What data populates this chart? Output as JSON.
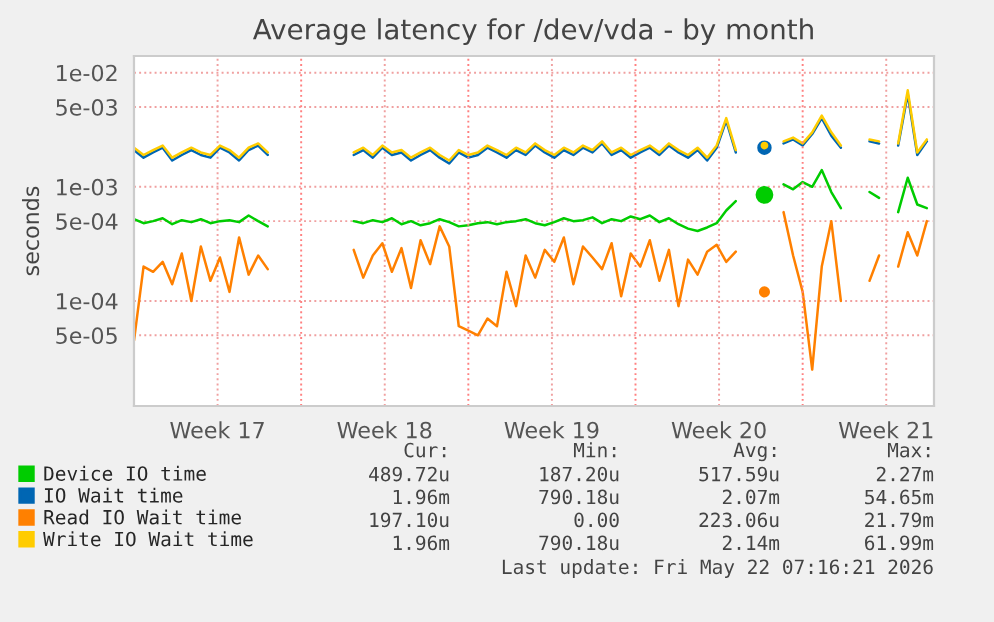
{
  "chart_data": {
    "type": "line",
    "title": "Average latency for /dev/vda - by month",
    "ylabel": "seconds",
    "x": [
      "2026-04-20T00:00",
      "2026-04-20T09:36",
      "2026-04-20T19:12",
      "2026-04-21T04:48",
      "2026-04-21T14:24",
      "2026-04-22T00:00",
      "2026-04-22T09:36",
      "2026-04-22T19:12",
      "2026-04-23T04:48",
      "2026-04-23T14:24",
      "2026-04-24T00:00",
      "2026-04-24T09:36",
      "2026-04-24T19:12",
      "2026-04-25T04:48",
      "2026-04-25T14:24",
      "2026-04-26T00:00",
      "2026-04-26T09:36",
      "2026-04-26T19:12",
      "2026-04-27T04:48",
      "2026-04-27T14:24",
      "2026-04-28T00:00",
      "2026-04-28T09:36",
      "2026-04-28T19:12",
      "2026-04-29T04:48",
      "2026-04-29T14:24",
      "2026-04-30T00:00",
      "2026-04-30T09:36",
      "2026-04-30T19:12",
      "2026-05-01T04:48",
      "2026-05-01T14:24",
      "2026-05-02T00:00",
      "2026-05-02T09:36",
      "2026-05-02T19:12",
      "2026-05-03T04:48",
      "2026-05-03T14:24",
      "2026-05-04T00:00",
      "2026-05-04T09:36",
      "2026-05-04T19:12",
      "2026-05-05T04:48",
      "2026-05-05T14:24",
      "2026-05-06T00:00",
      "2026-05-06T09:36",
      "2026-05-06T19:12",
      "2026-05-07T04:48",
      "2026-05-07T14:24",
      "2026-05-08T00:00",
      "2026-05-08T09:36",
      "2026-05-08T19:12",
      "2026-05-09T04:48",
      "2026-05-09T14:24",
      "2026-05-10T00:00",
      "2026-05-10T09:36",
      "2026-05-10T19:12",
      "2026-05-11T04:48",
      "2026-05-11T14:24",
      "2026-05-12T00:00",
      "2026-05-12T09:36",
      "2026-05-12T19:12",
      "2026-05-13T04:48",
      "2026-05-13T14:24",
      "2026-05-14T00:00",
      "2026-05-14T09:36",
      "2026-05-14T19:12",
      "2026-05-15T04:48",
      "2026-05-15T14:24",
      "2026-05-16T00:00",
      "2026-05-16T09:36",
      "2026-05-16T19:12",
      "2026-05-17T04:48",
      "2026-05-17T14:24",
      "2026-05-18T00:00",
      "2026-05-18T09:36",
      "2026-05-18T19:12",
      "2026-05-19T04:48",
      "2026-05-19T14:24",
      "2026-05-20T00:00",
      "2026-05-20T09:36",
      "2026-05-20T19:12",
      "2026-05-21T04:48",
      "2026-05-21T14:24",
      "2026-05-22T00:00",
      "2026-05-22T09:36",
      "2026-05-22T19:12",
      "2026-05-23T04:48"
    ],
    "series": [
      {
        "name": "Device IO time",
        "color": "#00cc00",
        "values": [
          0.00052,
          0.00048,
          0.0005,
          0.00053,
          0.00047,
          0.00051,
          0.00049,
          0.00052,
          0.00048,
          0.0005,
          0.00051,
          0.00049,
          0.00056,
          0.0005,
          0.00045,
          null,
          null,
          null,
          null,
          null,
          null,
          null,
          null,
          0.0005,
          0.00048,
          0.00051,
          0.00049,
          0.00053,
          0.00047,
          0.0005,
          0.00046,
          0.00048,
          0.00052,
          0.00049,
          0.00045,
          0.00046,
          0.00048,
          0.00049,
          0.00047,
          0.00049,
          0.0005,
          0.00052,
          0.00048,
          0.00046,
          0.00049,
          0.00053,
          0.0005,
          0.00051,
          0.00054,
          0.00048,
          0.00052,
          0.0005,
          0.00055,
          0.00052,
          0.00056,
          0.00049,
          0.00053,
          0.00047,
          0.00043,
          0.00041,
          0.00044,
          0.00048,
          0.00062,
          0.00075,
          null,
          null,
          0.00085,
          null,
          0.00105,
          0.00095,
          0.0011,
          0.001,
          0.0014,
          0.0009,
          0.00065,
          null,
          null,
          0.0009,
          0.0008,
          null,
          0.0006,
          0.0012,
          0.0007,
          0.00065
        ]
      },
      {
        "name": "IO Wait time",
        "color": "#0066b3",
        "values": [
          0.0021,
          0.0018,
          0.002,
          0.0022,
          0.0017,
          0.0019,
          0.0021,
          0.0019,
          0.0018,
          0.0022,
          0.002,
          0.0017,
          0.0021,
          0.0023,
          0.0019,
          null,
          null,
          null,
          null,
          null,
          null,
          null,
          null,
          0.0019,
          0.0021,
          0.0018,
          0.0022,
          0.0019,
          0.002,
          0.0017,
          0.0019,
          0.0021,
          0.0018,
          0.0016,
          0.002,
          0.0018,
          0.0019,
          0.0022,
          0.002,
          0.0018,
          0.0021,
          0.0019,
          0.0023,
          0.002,
          0.0018,
          0.0021,
          0.0019,
          0.0022,
          0.002,
          0.0024,
          0.0019,
          0.0021,
          0.0018,
          0.002,
          0.0022,
          0.0019,
          0.0023,
          0.002,
          0.0018,
          0.0021,
          0.0017,
          0.0022,
          0.0038,
          0.002,
          null,
          null,
          0.0022,
          null,
          0.0024,
          0.0026,
          0.0023,
          0.0029,
          0.004,
          0.0028,
          0.0022,
          null,
          null,
          0.0025,
          0.0024,
          null,
          0.0023,
          0.0065,
          0.0019,
          0.0025
        ]
      },
      {
        "name": "Read IO Wait time",
        "color": "#ff8000",
        "values": [
          4.5e-05,
          0.0002,
          0.00018,
          0.00022,
          0.00014,
          0.00026,
          0.0001,
          0.0003,
          0.00015,
          0.00024,
          0.00012,
          0.00036,
          0.00017,
          0.00025,
          0.00019,
          null,
          null,
          null,
          null,
          null,
          null,
          null,
          null,
          0.00028,
          0.00016,
          0.00025,
          0.00032,
          0.00018,
          0.00029,
          0.00013,
          0.00034,
          0.00021,
          0.00045,
          0.0003,
          6e-05,
          5.5e-05,
          5e-05,
          7e-05,
          6e-05,
          0.00018,
          9e-05,
          0.00025,
          0.00016,
          0.00028,
          0.00022,
          0.00036,
          0.00014,
          0.0003,
          0.00024,
          0.00019,
          0.00032,
          0.00011,
          0.00026,
          0.0002,
          0.00034,
          0.00015,
          0.00028,
          9e-05,
          0.00023,
          0.00017,
          0.00027,
          0.00031,
          0.00022,
          0.00027,
          null,
          null,
          0.00012,
          null,
          0.0006,
          0.00025,
          0.00012,
          2.5e-05,
          0.0002,
          0.0005,
          0.0001,
          null,
          null,
          0.00015,
          0.00025,
          null,
          0.0002,
          0.0004,
          0.00025,
          0.0005
        ]
      },
      {
        "name": "Write IO Wait time",
        "color": "#ffcc00",
        "values": [
          0.0022,
          0.0019,
          0.0021,
          0.0023,
          0.0018,
          0.002,
          0.0022,
          0.002,
          0.0019,
          0.0023,
          0.0021,
          0.0018,
          0.0022,
          0.0024,
          0.002,
          null,
          null,
          null,
          null,
          null,
          null,
          null,
          null,
          0.002,
          0.0022,
          0.0019,
          0.0023,
          0.002,
          0.0021,
          0.0018,
          0.002,
          0.0022,
          0.0019,
          0.0017,
          0.0021,
          0.0019,
          0.002,
          0.0023,
          0.0021,
          0.0019,
          0.0022,
          0.002,
          0.0024,
          0.0021,
          0.0019,
          0.0022,
          0.002,
          0.0023,
          0.0021,
          0.0025,
          0.002,
          0.0022,
          0.0019,
          0.0021,
          0.0023,
          0.002,
          0.0024,
          0.0021,
          0.0019,
          0.0022,
          0.0018,
          0.0023,
          0.004,
          0.0021,
          null,
          null,
          0.0023,
          null,
          0.0025,
          0.0027,
          0.0024,
          0.003,
          0.0042,
          0.003,
          0.0023,
          null,
          null,
          0.0026,
          0.0025,
          null,
          0.0024,
          0.007,
          0.002,
          0.0026
        ]
      }
    ],
    "log": true,
    "ylim": [
      1.2e-05,
      0.014
    ],
    "yticks": [
      {
        "value": 0.01,
        "label": "1e-02"
      },
      {
        "value": 0.005,
        "label": "5e-03"
      },
      {
        "value": 0.001,
        "label": "1e-03"
      },
      {
        "value": 0.0005,
        "label": "5e-04"
      },
      {
        "value": 0.0001,
        "label": "1e-04"
      },
      {
        "value": 5e-05,
        "label": "5e-05"
      }
    ],
    "xlim": [
      "2026-04-20T00:00",
      "2026-05-23T12:00"
    ],
    "xticks": [
      {
        "value": "2026-04-23T12:00",
        "label": "Week 17"
      },
      {
        "value": "2026-04-30T12:00",
        "label": "Week 18"
      },
      {
        "value": "2026-05-07T12:00",
        "label": "Week 19"
      },
      {
        "value": "2026-05-14T12:00",
        "label": "Week 20"
      },
      {
        "value": "2026-05-21T12:00",
        "label": "Week 21"
      }
    ],
    "ref_lines": [
      {
        "axis": "x",
        "value": "2026-04-27",
        "color": "#ff8080",
        "line_style": "dotted"
      },
      {
        "axis": "x",
        "value": "2026-05-04",
        "color": "#ff8080",
        "line_style": "dotted"
      },
      {
        "axis": "x",
        "value": "2026-05-11",
        "color": "#ff8080",
        "line_style": "dotted"
      },
      {
        "axis": "x",
        "value": "2026-05-18",
        "color": "#ff8080",
        "line_style": "dotted"
      }
    ],
    "grid": true,
    "legend": "bottom",
    "marker": "none",
    "line_style": "solid",
    "annotations": [
      "Cur:",
      "Min:",
      "Avg:",
      "Max:",
      "489.72u",
      "187.20u",
      "517.59u",
      "2.27m",
      "1.96m",
      "790.18u",
      "2.07m",
      "54.65m",
      "197.10u",
      "0.00",
      "223.06u",
      "21.79m",
      "1.96m",
      "790.18u",
      "2.14m",
      "61.99m",
      "Last update: Fri May 22 07:16:21 2026"
    ]
  }
}
